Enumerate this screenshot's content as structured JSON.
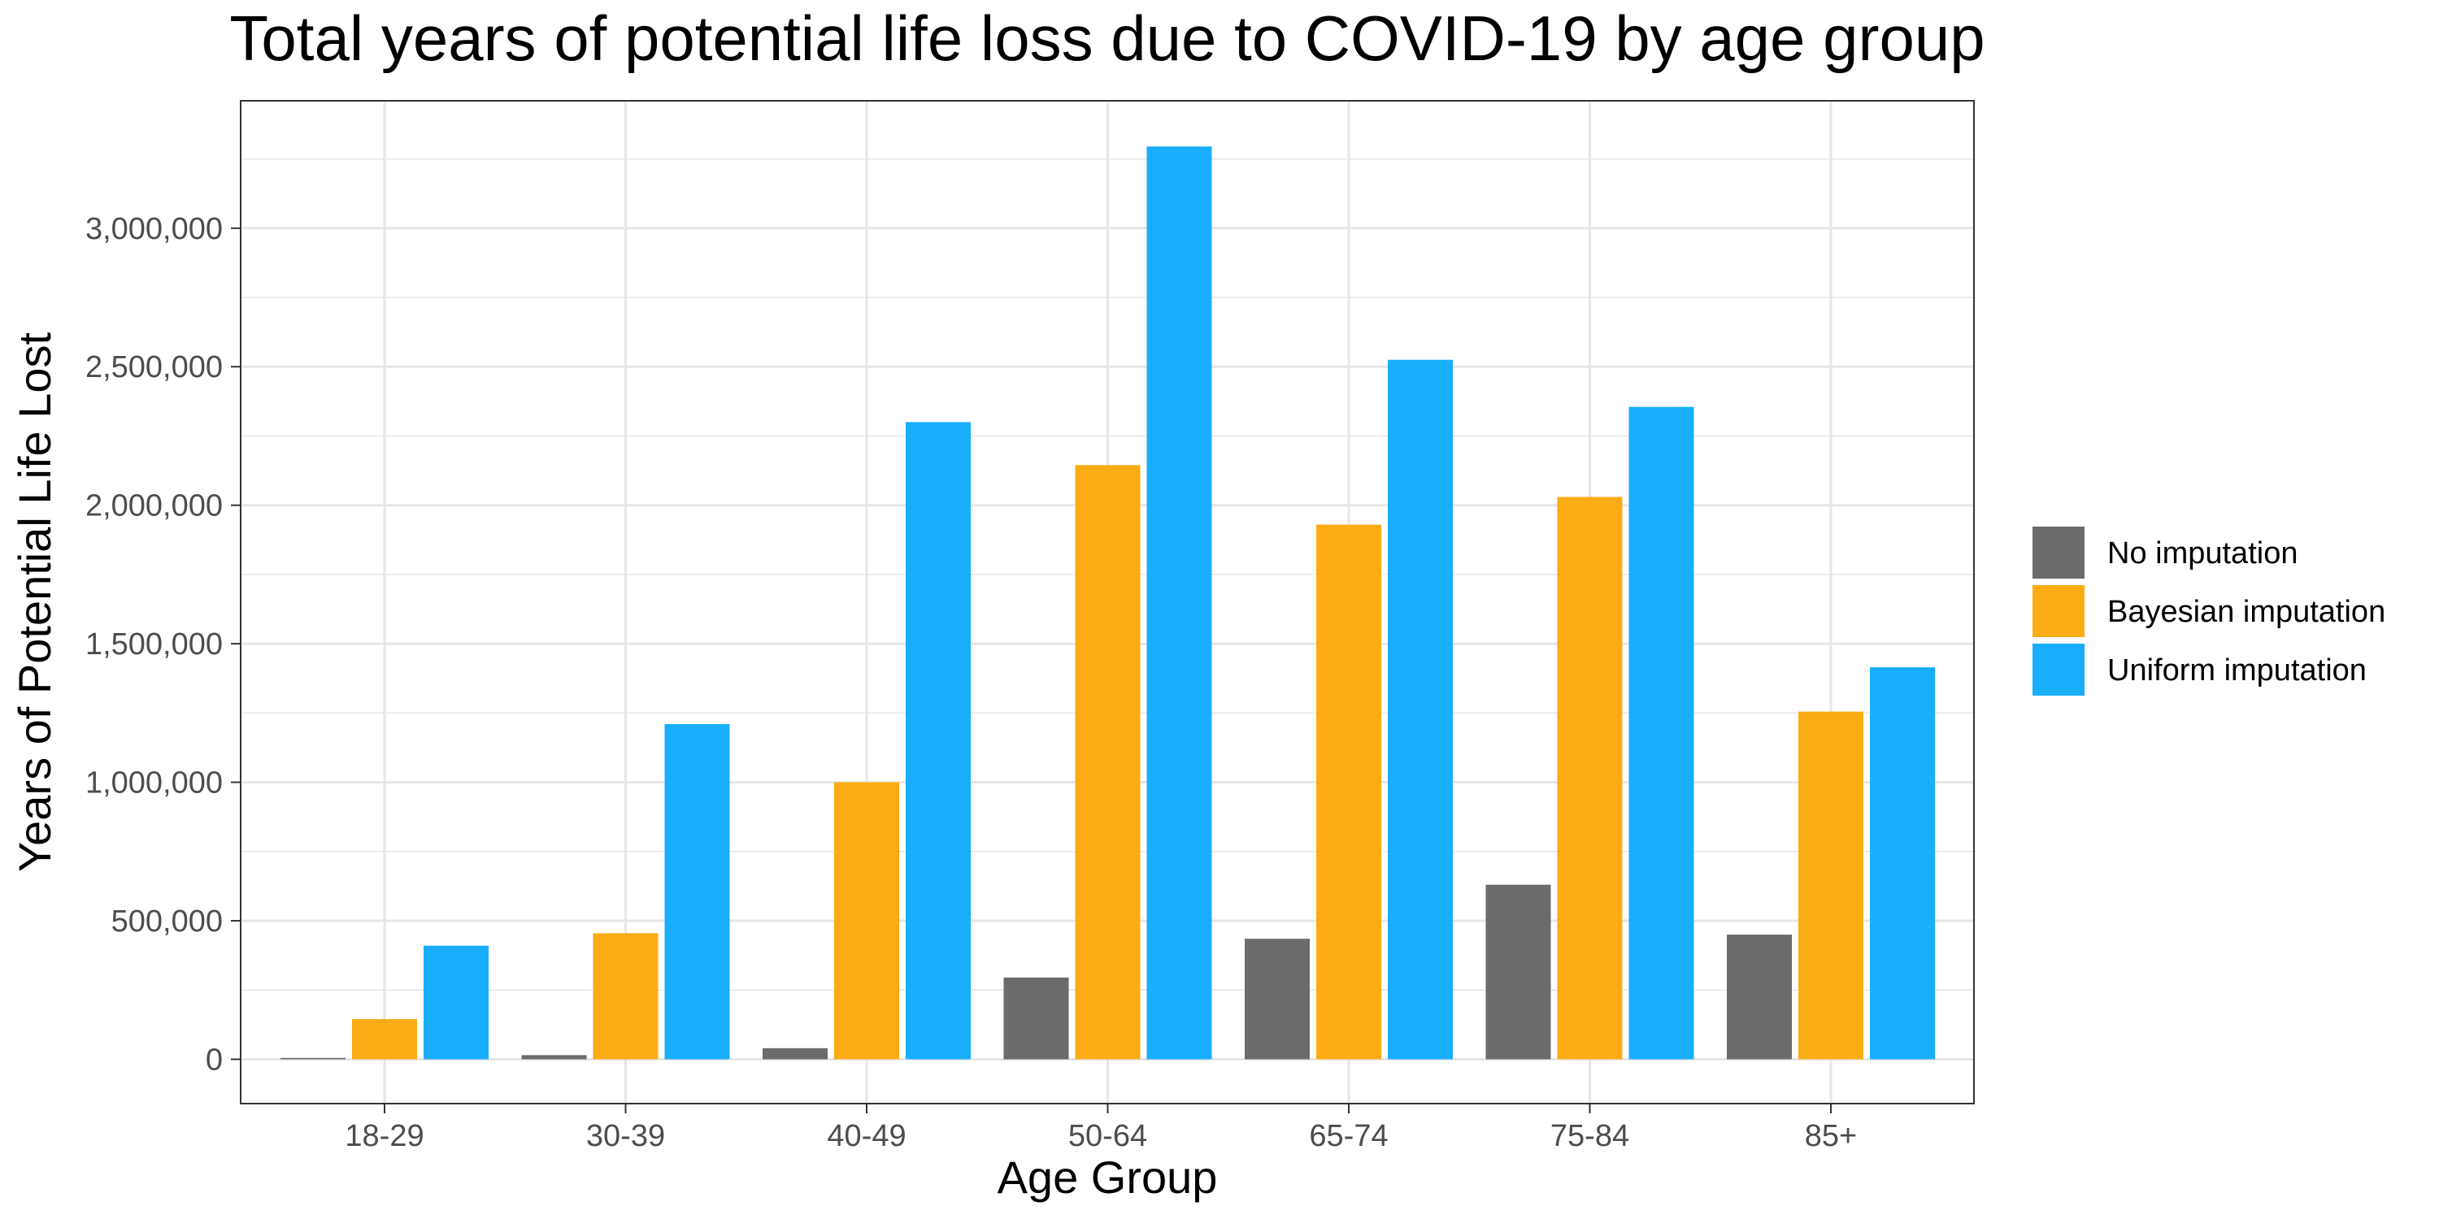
{
  "chart_data": {
    "type": "bar",
    "title": "Total years of potential life loss due to COVID-19 by age group",
    "xlabel": "Age Group",
    "ylabel": "Years of Potential Life Lost",
    "categories": [
      "18-29",
      "30-39",
      "40-49",
      "50-64",
      "65-74",
      "75-84",
      "85+"
    ],
    "series": [
      {
        "name": "No imputation",
        "color": "#6b6b6b",
        "values": [
          5000,
          15000,
          40000,
          295000,
          435000,
          630000,
          450000
        ]
      },
      {
        "name": "Bayesian imputation",
        "color": "#fbac14",
        "values": [
          145000,
          455000,
          1000000,
          2145000,
          1930000,
          2030000,
          1255000
        ]
      },
      {
        "name": "Uniform imputation",
        "color": "#19aefb",
        "values": [
          410000,
          1210000,
          2300000,
          3295000,
          2525000,
          2355000,
          1415000
        ]
      }
    ],
    "ylim": [
      -160000,
      3460000
    ],
    "yticks": [
      0,
      500000,
      1000000,
      1500000,
      2000000,
      2500000,
      3000000
    ],
    "ytick_labels": [
      "0",
      "500,000",
      "1,000,000",
      "1,500,000",
      "2,000,000",
      "2,500,000",
      "3,000,000"
    ],
    "grid": true,
    "legend_position": "right",
    "background": "#ffffff",
    "grid_color": "#e6e6e6",
    "panel_border_color": "#333333"
  }
}
